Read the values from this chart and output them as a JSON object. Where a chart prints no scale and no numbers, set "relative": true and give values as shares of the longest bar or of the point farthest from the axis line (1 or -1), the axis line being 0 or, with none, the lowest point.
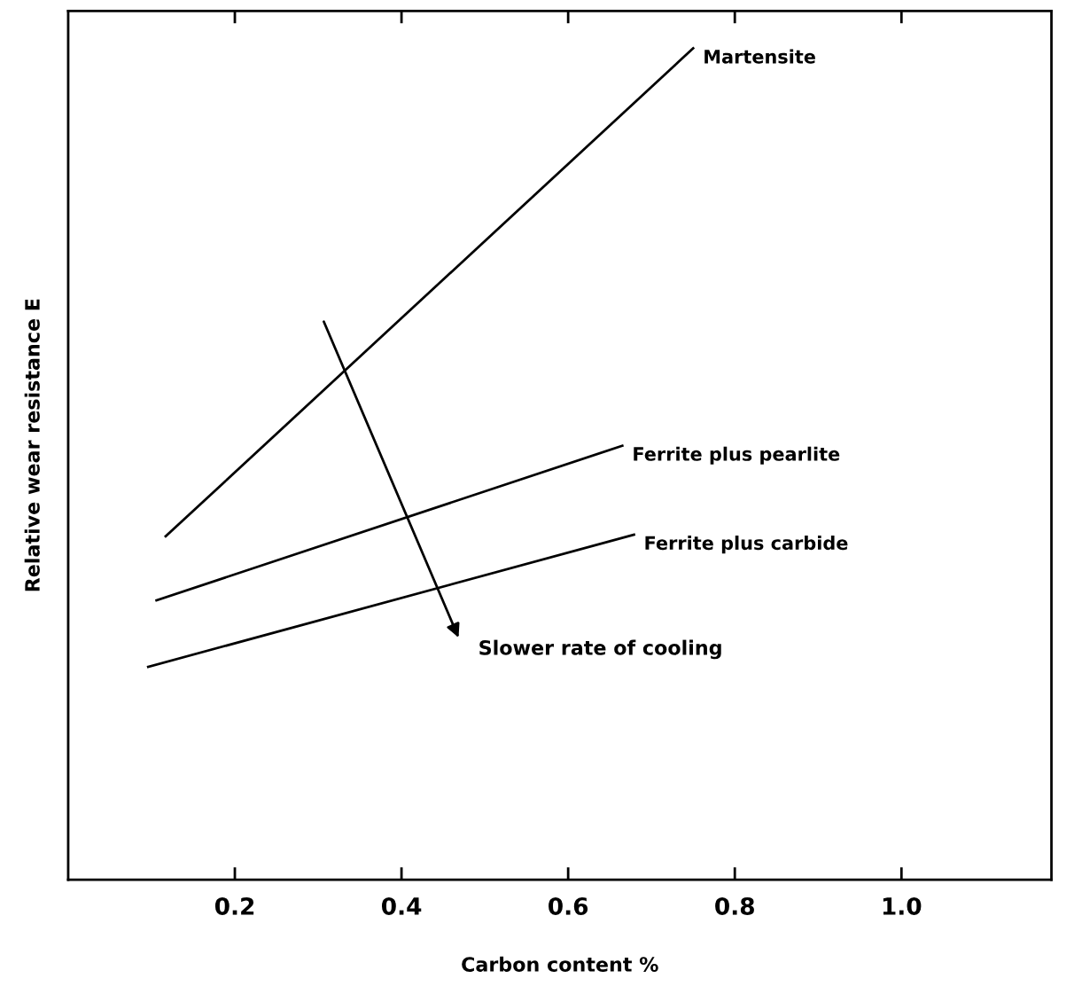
{
  "chart_data": {
    "type": "line",
    "relative": true,
    "xlabel": "Carbon content %",
    "ylabel": "Relative wear resistance E",
    "xlim": [
      0,
      1.18
    ],
    "xticks": [
      0.2,
      0.4,
      0.6,
      0.8,
      {
        "value": 1,
        "label": "1.0"
      }
    ],
    "grid": false,
    "legend": false,
    "marker": "none",
    "line_style": "solid",
    "series": [
      {
        "name": "Martensite",
        "color": "#000000",
        "x": [
          0.117,
          0.75
        ],
        "values": [
          0.413,
          1
        ]
      },
      {
        "name": "Ferrite plus pearlite",
        "color": "#000000",
        "x": [
          0.106,
          0.665
        ],
        "values": [
          0.336,
          0.522
        ]
      },
      {
        "name": "Ferrite plus carbide",
        "color": "#000000",
        "x": [
          0.096,
          0.679
        ],
        "values": [
          0.256,
          0.415
        ]
      }
    ],
    "annotations": [
      "Slower rate of cooling"
    ]
  }
}
